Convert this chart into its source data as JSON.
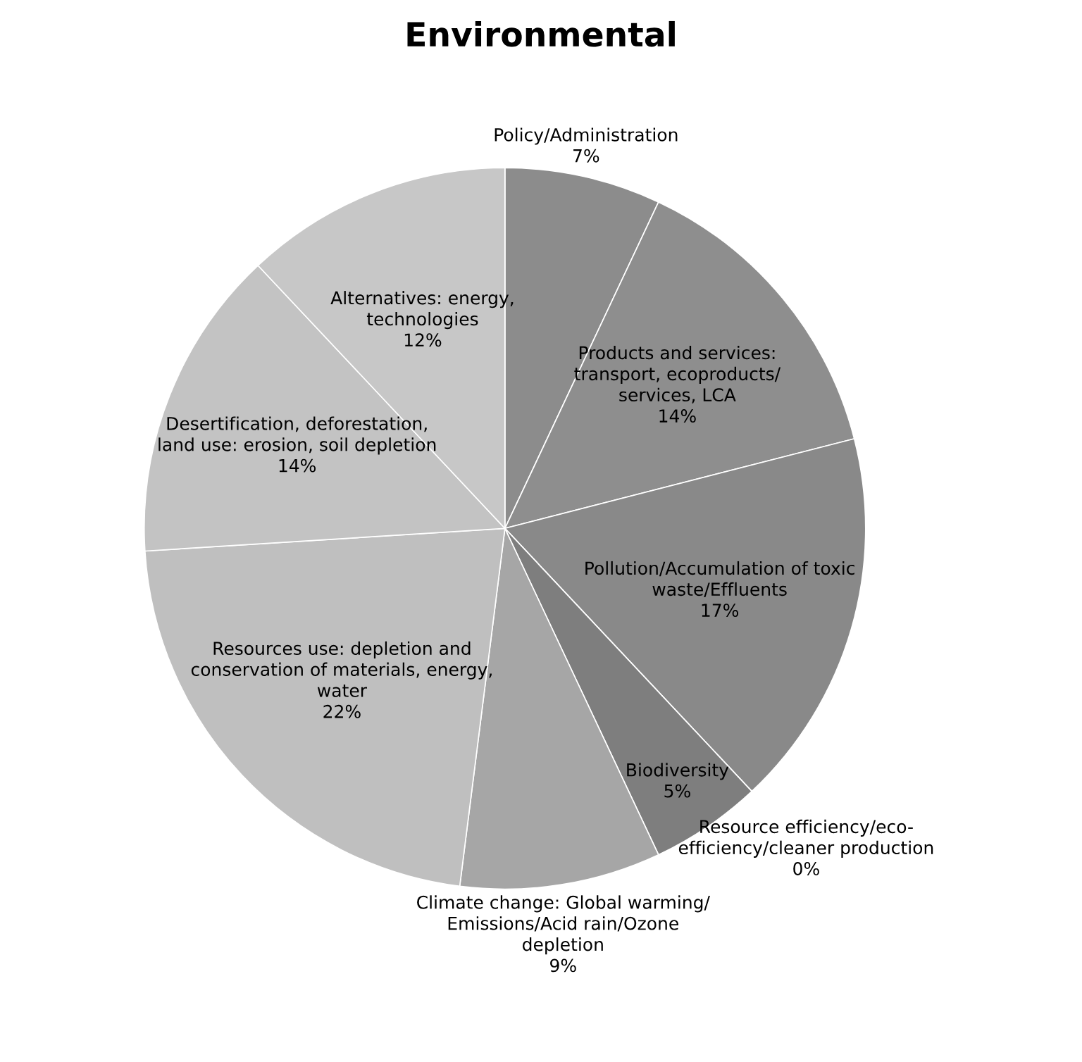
{
  "chart_data": {
    "type": "pie",
    "title": "Environmental",
    "categories": [
      "Policy/Administration",
      "Products and services:\ntransport, ecoproducts/\nservices, LCA",
      "Pollution/Accumulation of toxic\nwaste/Effluents",
      "Resource efficiency/eco-\nefficiency/cleaner production",
      "Biodiversity",
      "Climate change: Global warming/\nEmissions/Acid rain/Ozone\ndepletion",
      "Resources use: depletion and\nconservation of materials, energy,\nwater",
      "Desertification, deforestation,\nland use: erosion, soil depletion",
      "Alternatives: energy,\ntechnologies"
    ],
    "values": [
      7,
      14,
      17,
      0,
      5,
      9,
      22,
      14,
      12
    ],
    "value_labels": [
      "7%",
      "14%",
      "17%",
      "0%",
      "5%",
      "9%",
      "22%",
      "14%",
      "12%"
    ],
    "colors": [
      "#8c8c8c",
      "#8e8e8e",
      "#898989",
      "#808080",
      "#7e7e7e",
      "#a6a6a6",
      "#bfbfbf",
      "#c3c3c3",
      "#c7c7c7"
    ]
  }
}
